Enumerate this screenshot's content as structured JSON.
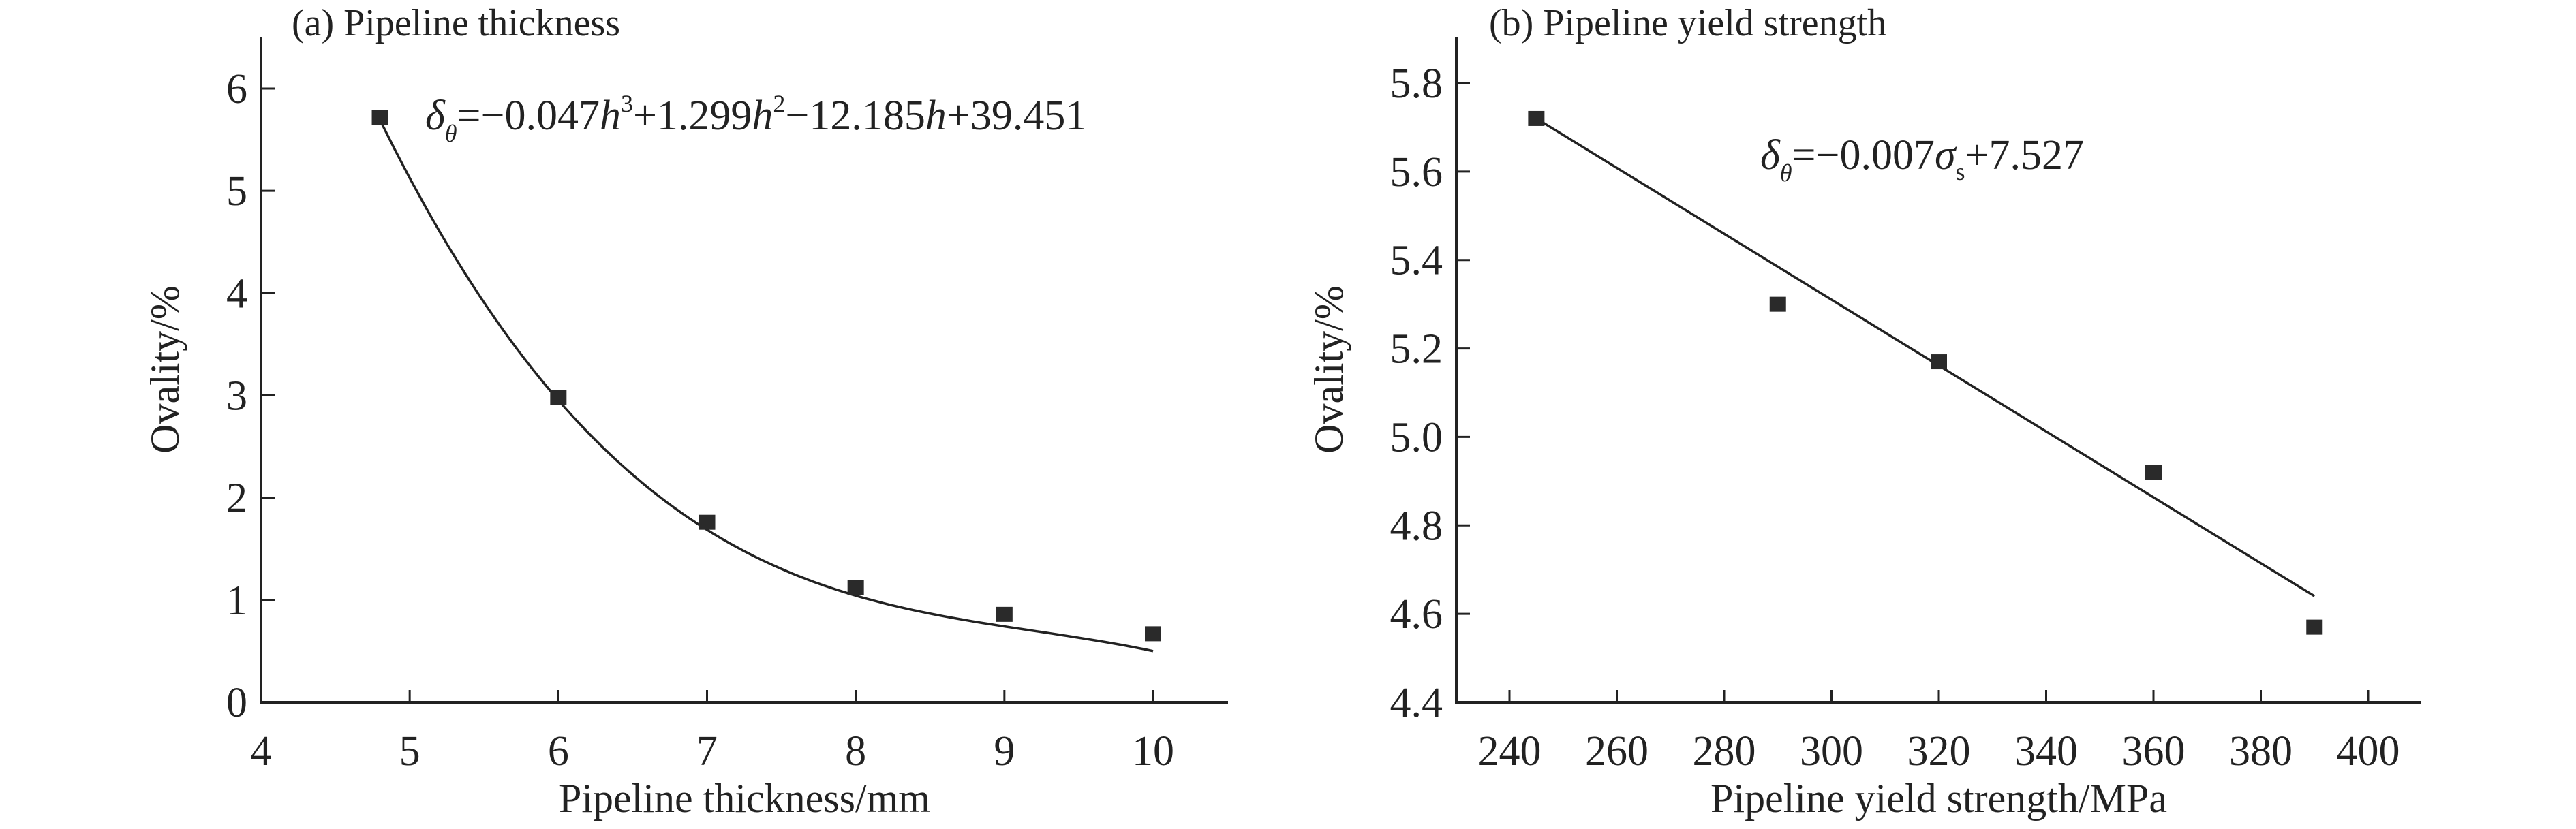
{
  "chart_data": [
    {
      "type": "scatter",
      "title": "(a) Pipeline thickness",
      "xlabel": "Pipeline thickness/mm",
      "ylabel": "Ovality/%",
      "xlim": [
        4,
        10.5
      ],
      "ylim": [
        0,
        6.5
      ],
      "xticks": [
        4,
        5,
        6,
        7,
        8,
        9,
        10
      ],
      "yticks": [
        0,
        1,
        2,
        3,
        4,
        5,
        6
      ],
      "x": [
        4.8,
        6,
        7,
        8,
        9,
        10
      ],
      "y": [
        5.72,
        2.98,
        1.76,
        1.12,
        0.86,
        0.67
      ],
      "fit": {
        "kind": "cubic",
        "coefficients": [
          -0.047,
          1.299,
          -12.185,
          39.451
        ],
        "range": [
          4.8,
          10
        ]
      },
      "equation": {
        "lhs": "δ",
        "sub": "θ",
        "parts": [
          "=−0.047",
          "h",
          "3",
          "+1.299",
          "h",
          "2",
          "−12.185",
          "h",
          "+39.451"
        ]
      },
      "grid": false
    },
    {
      "type": "scatter",
      "title": "(b) Pipeline yield strength",
      "xlabel": "Pipeline yield strength/MPa",
      "ylabel": "Ovality/%",
      "xlim": [
        230,
        410
      ],
      "ylim": [
        4.4,
        5.9
      ],
      "xticks": [
        240,
        260,
        280,
        300,
        320,
        340,
        360,
        380,
        400
      ],
      "yticks": [
        "4.4",
        "4.6",
        "4.8",
        "5.0",
        "5.2",
        "5.4",
        "5.6",
        "5.8"
      ],
      "x": [
        245,
        290,
        320,
        360,
        390
      ],
      "y": [
        5.72,
        5.3,
        5.17,
        4.92,
        4.57
      ],
      "fit": {
        "kind": "linear",
        "points": [
          [
            245,
            5.72
          ],
          [
            390,
            4.64
          ]
        ]
      },
      "equation": {
        "lhs": "δ",
        "sub": "θ",
        "parts": [
          "=−0.007",
          "σ",
          "s",
          "+7.527"
        ]
      },
      "grid": false
    }
  ]
}
